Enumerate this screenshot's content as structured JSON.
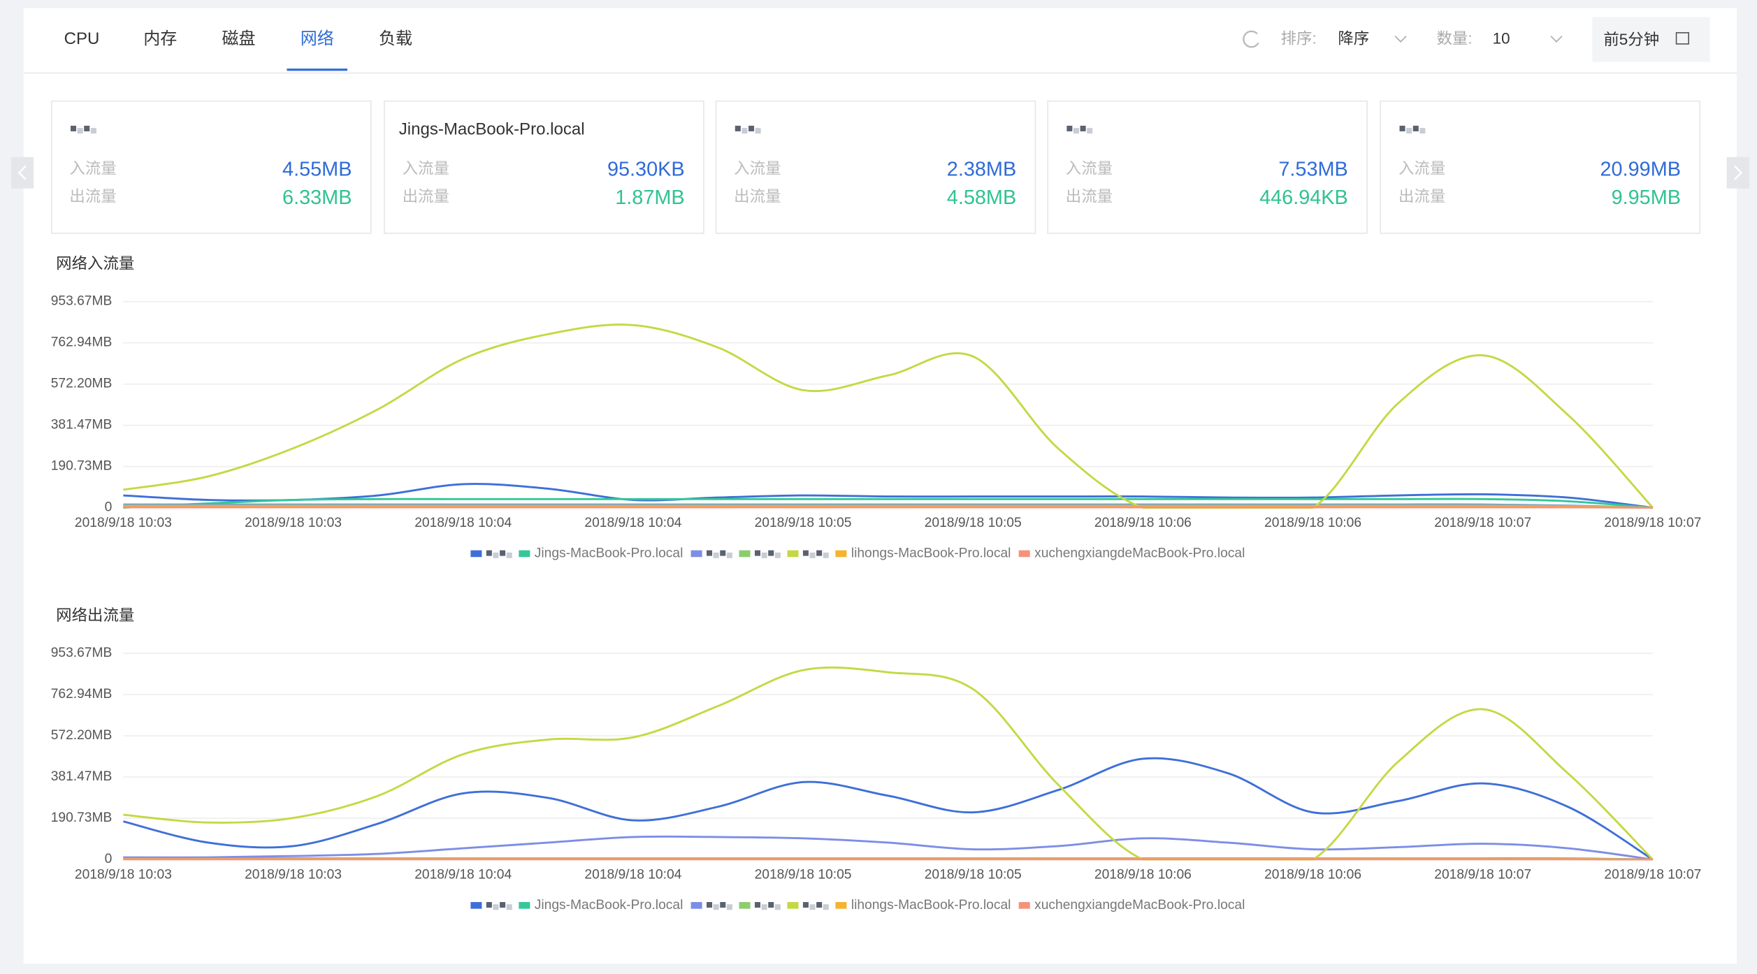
{
  "tabs": [
    "CPU",
    "内存",
    "磁盘",
    "网络",
    "负载"
  ],
  "active_tab": 3,
  "toolbar": {
    "sort_label": "排序:",
    "sort_value": "降序",
    "count_label": "数量:",
    "count_value": "10",
    "range": "前5分钟"
  },
  "cards": [
    {
      "title": null,
      "in_label": "入流量",
      "in_value": "4.55MB",
      "out_label": "出流量",
      "out_value": "6.33MB"
    },
    {
      "title": "Jings-MacBook-Pro.local",
      "in_label": "入流量",
      "in_value": "95.30KB",
      "out_label": "出流量",
      "out_value": "1.87MB"
    },
    {
      "title": null,
      "in_label": "入流量",
      "in_value": "2.38MB",
      "out_label": "出流量",
      "out_value": "4.58MB"
    },
    {
      "title": null,
      "in_label": "入流量",
      "in_value": "7.53MB",
      "out_label": "出流量",
      "out_value": "446.94KB"
    },
    {
      "title": null,
      "in_label": "入流量",
      "in_value": "20.99MB",
      "out_label": "出流量",
      "out_value": "9.95MB"
    }
  ],
  "chart_data": [
    {
      "type": "line",
      "title": "网络入流量",
      "smooth": true,
      "grid": true,
      "categories": [
        "2018/9/18 10:03",
        null,
        "2018/9/18 10:03",
        null,
        "2018/9/18 10:04",
        null,
        "2018/9/18 10:04",
        null,
        "2018/9/18 10:05",
        null,
        "2018/9/18 10:05",
        null,
        "2018/9/18 10:06",
        null,
        "2018/9/18 10:06",
        null,
        "2018/9/18 10:07",
        null,
        "2018/9/18 10:07"
      ],
      "ylim": [
        0,
        953.67
      ],
      "yticks": [
        0,
        {
          "value": 190.73,
          "label": "190.73MB"
        },
        {
          "value": 381.47,
          "label": "381.47MB"
        },
        {
          "value": 572.2,
          "label": "572.20MB"
        },
        {
          "value": 762.94,
          "label": "762.94MB"
        },
        {
          "value": 953.67,
          "label": "953.67MB"
        }
      ],
      "series": [
        {
          "name": null,
          "color": "#3e6fd8",
          "values": [
            57,
            36,
            36,
            57,
            109,
            88,
            36,
            47,
            57,
            52,
            52,
            52,
            52,
            47,
            47,
            57,
            62,
            47,
            0
          ]
        },
        {
          "name": "Jings-MacBook-Pro.local",
          "color": "#34c79a",
          "values": [
            0,
            20,
            36,
            40,
            40,
            40,
            40,
            40,
            40,
            40,
            40,
            40,
            40,
            40,
            40,
            40,
            40,
            30,
            0
          ]
        },
        {
          "name": null,
          "color": "#7d8ee6",
          "values": [
            15,
            15,
            15,
            15,
            15,
            15,
            15,
            15,
            15,
            15,
            15,
            15,
            15,
            15,
            15,
            15,
            15,
            10,
            0
          ]
        },
        {
          "name": null,
          "color": "#8ccc6e",
          "values": [
            10,
            10,
            10,
            10,
            10,
            10,
            10,
            10,
            10,
            10,
            10,
            10,
            10,
            10,
            10,
            10,
            10,
            8,
            0
          ]
        },
        {
          "name": null,
          "color": "#c5d843",
          "values": [
            83,
            145,
            275,
            456,
            689,
            803,
            845,
            741,
            544,
            612,
            700,
            275,
            0,
            0,
            0,
            482,
            705,
            430,
            0
          ]
        },
        {
          "name": "lihongs-MacBook-Pro.local",
          "color": "#f5b32e",
          "values": [
            5,
            5,
            5,
            5,
            5,
            5,
            5,
            5,
            5,
            5,
            5,
            5,
            5,
            5,
            5,
            5,
            5,
            4,
            0
          ]
        },
        {
          "name": "xuchengxiangdeMacBook-Pro.local",
          "color": "#f4937a",
          "values": [
            2,
            2,
            2,
            2,
            2,
            2,
            2,
            2,
            2,
            2,
            2,
            2,
            2,
            2,
            2,
            2,
            2,
            2,
            0
          ]
        }
      ]
    },
    {
      "type": "line",
      "title": "网络出流量",
      "smooth": true,
      "grid": true,
      "categories": [
        "2018/9/18 10:03",
        null,
        "2018/9/18 10:03",
        null,
        "2018/9/18 10:04",
        null,
        "2018/9/18 10:04",
        null,
        "2018/9/18 10:05",
        null,
        "2018/9/18 10:05",
        null,
        "2018/9/18 10:06",
        null,
        "2018/9/18 10:06",
        null,
        "2018/9/18 10:07",
        null,
        "2018/9/18 10:07"
      ],
      "ylim": [
        0,
        953.67
      ],
      "yticks": [
        0,
        {
          "value": 190.73,
          "label": "190.73MB"
        },
        {
          "value": 381.47,
          "label": "381.47MB"
        },
        {
          "value": 572.2,
          "label": "572.20MB"
        },
        {
          "value": 762.94,
          "label": "762.94MB"
        },
        {
          "value": 953.67,
          "label": "953.67MB"
        }
      ],
      "series": [
        {
          "name": null,
          "color": "#3e6fd8",
          "values": [
            176,
            78,
            62,
            166,
            306,
            285,
            181,
            244,
            358,
            295,
            218,
            321,
            466,
            399,
            218,
            270,
            352,
            244,
            0
          ]
        },
        {
          "name": "Jings-MacBook-Pro.local",
          "color": "#34c79a",
          "values": [
            5,
            5,
            5,
            5,
            5,
            5,
            5,
            5,
            5,
            5,
            5,
            5,
            5,
            5,
            5,
            5,
            5,
            5,
            0
          ]
        },
        {
          "name": null,
          "color": "#7d8ee6",
          "values": [
            10,
            10,
            16,
            26,
            52,
            78,
            104,
            104,
            98,
            78,
            47,
            62,
            98,
            78,
            47,
            57,
            73,
            52,
            0
          ]
        },
        {
          "name": null,
          "color": "#8ccc6e",
          "values": [
            3,
            3,
            3,
            3,
            3,
            3,
            3,
            3,
            3,
            3,
            3,
            3,
            3,
            3,
            3,
            3,
            3,
            3,
            0
          ]
        },
        {
          "name": null,
          "color": "#c5d843",
          "values": [
            207,
            171,
            192,
            295,
            487,
            555,
            565,
            710,
            876,
            866,
            788,
            347,
            0,
            0,
            0,
            451,
            695,
            399,
            0
          ]
        },
        {
          "name": "lihongs-MacBook-Pro.local",
          "color": "#f5b32e",
          "values": [
            2,
            2,
            2,
            2,
            2,
            2,
            2,
            2,
            2,
            2,
            2,
            2,
            2,
            2,
            2,
            2,
            2,
            2,
            0
          ]
        },
        {
          "name": "xuchengxiangdeMacBook-Pro.local",
          "color": "#f4937a",
          "values": [
            1,
            1,
            1,
            1,
            1,
            1,
            1,
            1,
            1,
            1,
            1,
            1,
            1,
            1,
            1,
            1,
            1,
            1,
            0
          ]
        }
      ]
    }
  ]
}
